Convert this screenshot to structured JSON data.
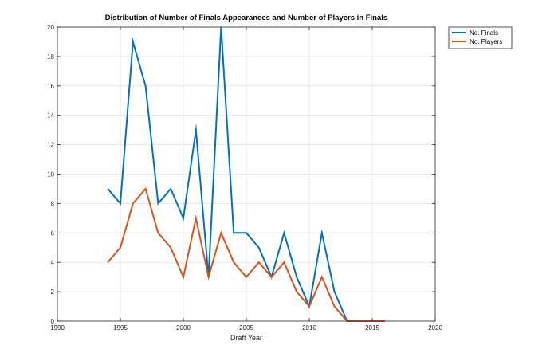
{
  "chart_data": {
    "type": "line",
    "title": "Distribution of Number of Finals Appearances and Number of Players in Finals",
    "xlabel": "Draft Year",
    "ylabel": "",
    "xlim": [
      1990,
      2020
    ],
    "ylim": [
      0,
      20
    ],
    "xticks": [
      "1990",
      "1995",
      "2000",
      "2005",
      "2010",
      "2015",
      "2020"
    ],
    "yticks": [
      "0",
      "2",
      "4",
      "6",
      "8",
      "10",
      "12",
      "14",
      "16",
      "18",
      "20"
    ],
    "grid": true,
    "legend_position": "outside top-right",
    "x": [
      1994,
      1995,
      1996,
      1997,
      1998,
      1999,
      2000,
      2001,
      2002,
      2003,
      2004,
      2005,
      2006,
      2007,
      2008,
      2009,
      2010,
      2011,
      2012,
      2013,
      2014,
      2015,
      2016
    ],
    "series": [
      {
        "name": "No. Finals",
        "color": "#0072BD",
        "values": [
          9,
          8,
          19,
          16,
          8,
          9,
          7,
          13,
          3,
          20,
          6,
          6,
          5,
          3,
          6,
          3,
          1,
          6,
          2,
          0,
          0,
          0,
          0
        ]
      },
      {
        "name": "No. Players",
        "color": "#D95319",
        "values": [
          4,
          5,
          8,
          9,
          6,
          5,
          3,
          7,
          3,
          6,
          4,
          3,
          4,
          3,
          4,
          2,
          1,
          3,
          1,
          0,
          0,
          0,
          0
        ]
      }
    ]
  }
}
